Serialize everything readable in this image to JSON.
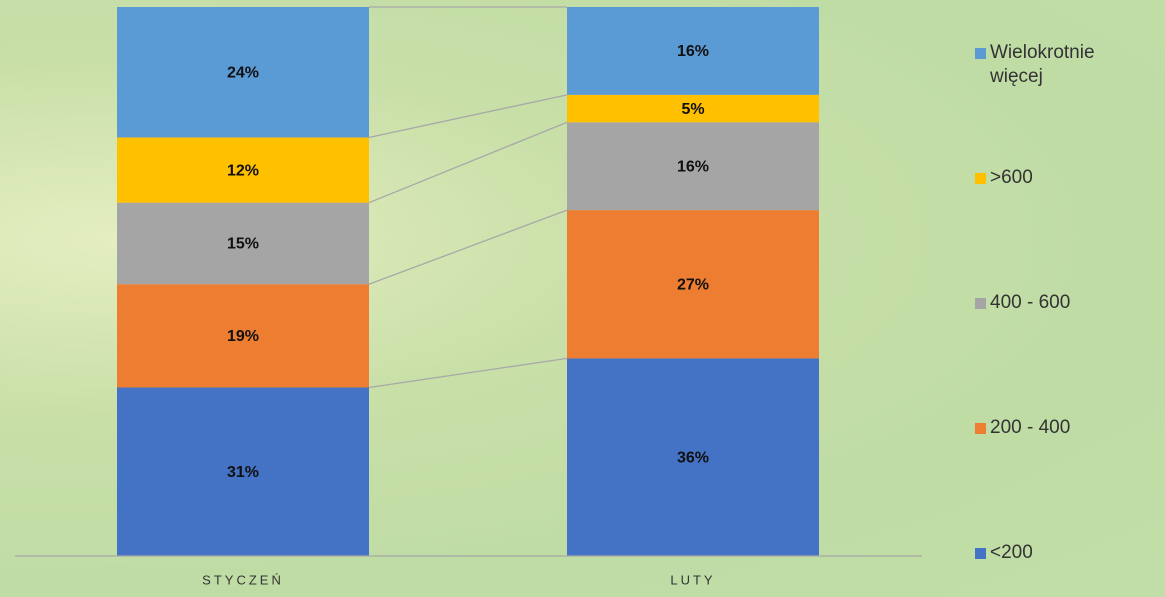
{
  "chart_data": {
    "type": "bar",
    "stacked": true,
    "percent_stack": true,
    "categories": [
      "STYCZEŃ",
      "LUTY"
    ],
    "series": [
      {
        "name": "<200",
        "color": "#4472c4",
        "values": [
          31,
          36
        ],
        "value_labels": [
          "31%",
          "36%"
        ]
      },
      {
        "name": "200 - 400",
        "color": "#ed7d31",
        "values": [
          19,
          27
        ],
        "value_labels": [
          "19%",
          "27%"
        ]
      },
      {
        "name": "400 - 600",
        "color": "#a5a5a5",
        "values": [
          15,
          16
        ],
        "value_labels": [
          "15%",
          "16%"
        ]
      },
      {
        "name": ">600",
        "color": "#ffc000",
        "values": [
          12,
          5
        ],
        "value_labels": [
          "12%",
          "5%"
        ]
      },
      {
        "name": "Wielokrotnie więcej",
        "color": "#5b9bd5",
        "values": [
          24,
          16
        ],
        "value_labels": [
          "24%",
          "16%"
        ]
      }
    ],
    "legend": "right",
    "series_lines": true
  }
}
